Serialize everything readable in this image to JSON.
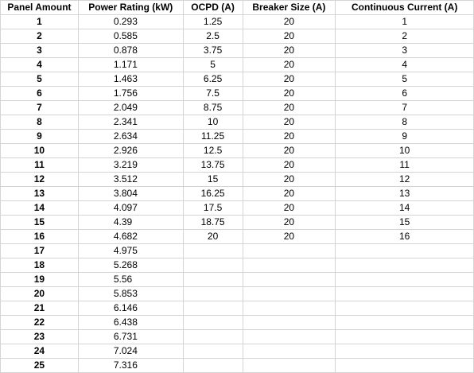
{
  "sheet": {
    "headers": [
      "Panel Amount",
      "Power Rating (kW)",
      "OCPD (A)",
      "Breaker Size (A)",
      "Continuous Current (A)"
    ],
    "rows": [
      [
        "1",
        "0.293",
        "1.25",
        "20",
        "1"
      ],
      [
        "2",
        "0.585",
        "2.5",
        "20",
        "2"
      ],
      [
        "3",
        "0.878",
        "3.75",
        "20",
        "3"
      ],
      [
        "4",
        "1.171",
        "5",
        "20",
        "4"
      ],
      [
        "5",
        "1.463",
        "6.25",
        "20",
        "5"
      ],
      [
        "6",
        "1.756",
        "7.5",
        "20",
        "6"
      ],
      [
        "7",
        "2.049",
        "8.75",
        "20",
        "7"
      ],
      [
        "8",
        "2.341",
        "10",
        "20",
        "8"
      ],
      [
        "9",
        "2.634",
        "11.25",
        "20",
        "9"
      ],
      [
        "10",
        "2.926",
        "12.5",
        "20",
        "10"
      ],
      [
        "11",
        "3.219",
        "13.75",
        "20",
        "11"
      ],
      [
        "12",
        "3.512",
        "15",
        "20",
        "12"
      ],
      [
        "13",
        "3.804",
        "16.25",
        "20",
        "13"
      ],
      [
        "14",
        "4.097",
        "17.5",
        "20",
        "14"
      ],
      [
        "15",
        "4.39",
        "18.75",
        "20",
        "15"
      ],
      [
        "16",
        "4.682",
        "20",
        "20",
        "16"
      ],
      [
        "17",
        "4.975",
        "",
        "",
        ""
      ],
      [
        "18",
        "5.268",
        "",
        "",
        ""
      ],
      [
        "19",
        "5.56",
        "",
        "",
        ""
      ],
      [
        "20",
        "5.853",
        "",
        "",
        ""
      ],
      [
        "21",
        "6.146",
        "",
        "",
        ""
      ],
      [
        "22",
        "6.438",
        "",
        "",
        ""
      ],
      [
        "23",
        "6.731",
        "",
        "",
        ""
      ],
      [
        "24",
        "7.024",
        "",
        "",
        ""
      ],
      [
        "25",
        "7.316",
        "",
        "",
        ""
      ]
    ]
  }
}
